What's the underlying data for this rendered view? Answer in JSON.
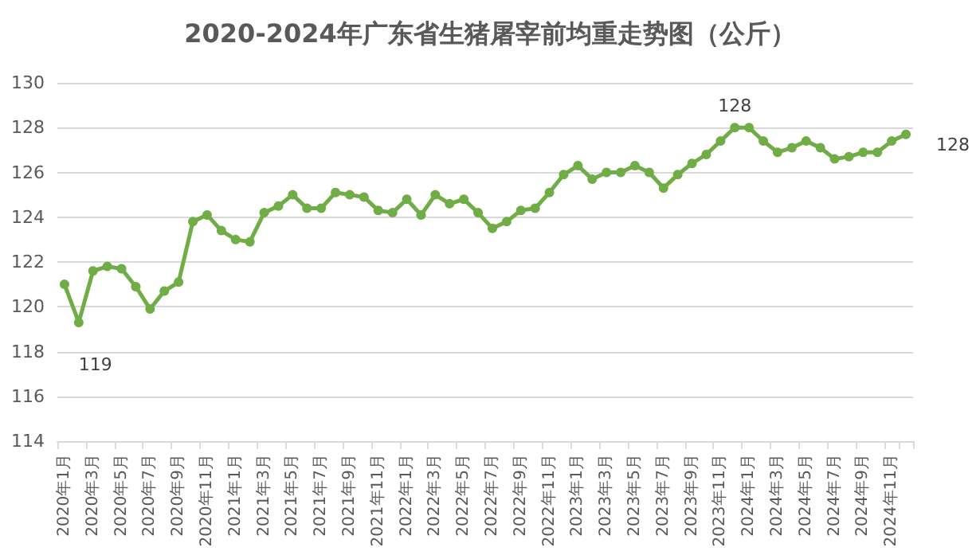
{
  "chart_data": {
    "type": "line",
    "title": "2020-2024年广东省生猪屠宰前均重走势图（公斤）",
    "categories": [
      "2020年1月",
      null,
      "2020年3月",
      null,
      "2020年5月",
      null,
      "2020年7月",
      null,
      "2020年9月",
      null,
      "2020年11月",
      null,
      "2021年1月",
      null,
      "2021年3月",
      null,
      "2021年5月",
      null,
      "2021年7月",
      null,
      "2021年9月",
      null,
      "2021年11月",
      null,
      "2022年1月",
      null,
      "2022年3月",
      null,
      "2022年5月",
      null,
      "2022年7月",
      null,
      "2022年9月",
      null,
      "2022年11月",
      null,
      "2023年1月",
      null,
      "2023年3月",
      null,
      "2023年5月",
      null,
      "2023年7月",
      null,
      "2023年9月",
      null,
      "2023年11月",
      null,
      "2024年1月",
      null,
      "2024年3月",
      null,
      "2024年5月",
      null,
      "2024年7月",
      null,
      "2024年9月",
      null,
      "2024年11月",
      null
    ],
    "series": [
      {
        "color": "#70ad47",
        "values": [
          121.0,
          119.3,
          121.6,
          121.8,
          121.7,
          120.9,
          119.9,
          120.7,
          121.1,
          123.8,
          124.1,
          123.4,
          123.0,
          122.9,
          124.2,
          124.5,
          125.0,
          124.4,
          124.4,
          125.1,
          125.0,
          124.9,
          124.3,
          124.2,
          124.8,
          124.1,
          125.0,
          124.6,
          124.8,
          124.2,
          123.5,
          123.8,
          124.3,
          124.4,
          125.1,
          125.9,
          126.3,
          125.7,
          126.0,
          126.0,
          126.3,
          126.0,
          125.3,
          125.9,
          126.4,
          126.8,
          127.4,
          128.0,
          128.0,
          127.4,
          126.9,
          127.1,
          127.4,
          127.1,
          126.6,
          126.7,
          126.9,
          126.9,
          127.4,
          127.7
        ],
        "value_labels": [
          null,
          "119",
          null,
          null,
          null,
          null,
          null,
          null,
          null,
          null,
          null,
          null,
          null,
          null,
          null,
          null,
          null,
          null,
          null,
          null,
          null,
          null,
          null,
          null,
          null,
          null,
          null,
          null,
          null,
          null,
          null,
          null,
          null,
          null,
          null,
          null,
          null,
          null,
          null,
          null,
          null,
          null,
          null,
          null,
          null,
          null,
          null,
          "128",
          null,
          null,
          null,
          null,
          null,
          null,
          null,
          null,
          null,
          null,
          null,
          "128"
        ]
      }
    ],
    "ylim": [
      114,
      130
    ],
    "yticks": [
      114,
      116,
      118,
      120,
      122,
      124,
      126,
      128,
      130
    ],
    "grid": "y",
    "marker": "circle",
    "line_style": "solid"
  }
}
